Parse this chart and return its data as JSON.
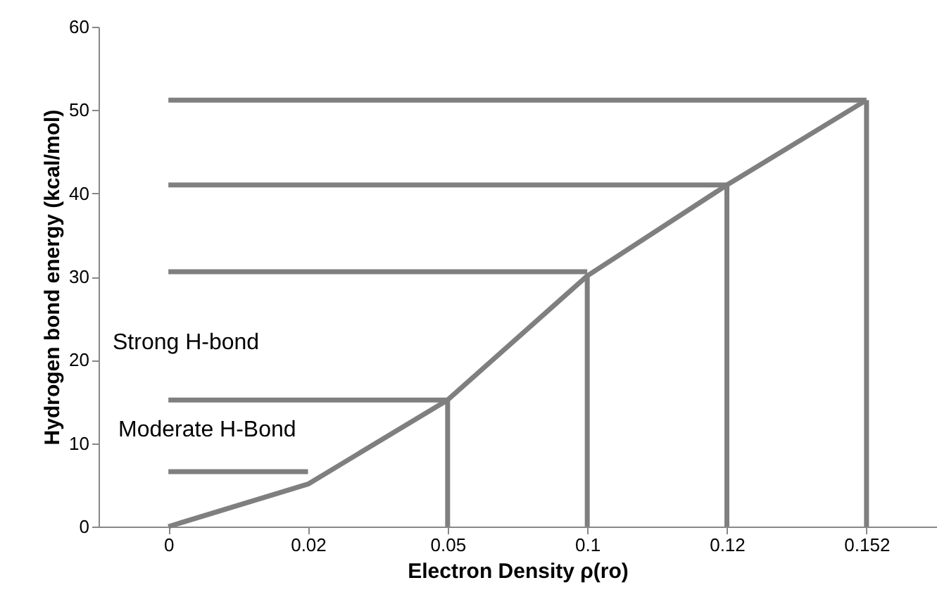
{
  "chart_data": {
    "type": "line",
    "xlabel": "Electron Density ρ(ro)",
    "ylabel": "Hydrogen bond energy (kcal/mol)",
    "categories": [
      "0",
      "0.02",
      "0.05",
      "0.1",
      "0.12",
      "0.152"
    ],
    "series": [
      {
        "type": "line",
        "color": "#7f7f7f",
        "values": [
          0,
          5.1,
          15.2,
          30.1,
          41,
          51.2
        ],
        "errors": [
          null,
          null,
          [
            0,
            15.2
          ],
          [
            0,
            30.1
          ],
          [
            0,
            41
          ],
          [
            0,
            51.2
          ]
        ]
      },
      {
        "type": "line",
        "color": "#7f7f7f",
        "values": [
          51.2,
          51.2,
          51.2,
          51.2,
          51.2,
          51.2
        ]
      },
      {
        "type": "line",
        "color": "#7f7f7f",
        "values": [
          41,
          41,
          41,
          41,
          41,
          null
        ]
      },
      {
        "type": "line",
        "color": "#7f7f7f",
        "values": [
          30.6,
          30.6,
          30.6,
          30.6,
          null,
          null
        ]
      },
      {
        "type": "line",
        "color": "#7f7f7f",
        "values": [
          15.2,
          15.2,
          15.2,
          null,
          null,
          null
        ]
      },
      {
        "type": "line",
        "color": "#7f7f7f",
        "values": [
          6.6,
          6.6,
          null,
          null,
          null,
          null
        ]
      }
    ],
    "annotations": [
      "Strong H-bond",
      "Moderate H-Bond"
    ],
    "ylim": [
      0,
      60
    ],
    "yticks": [
      0,
      10,
      20,
      30,
      40,
      50,
      60
    ],
    "grid": false,
    "marker": "none",
    "line_style": "solid"
  }
}
